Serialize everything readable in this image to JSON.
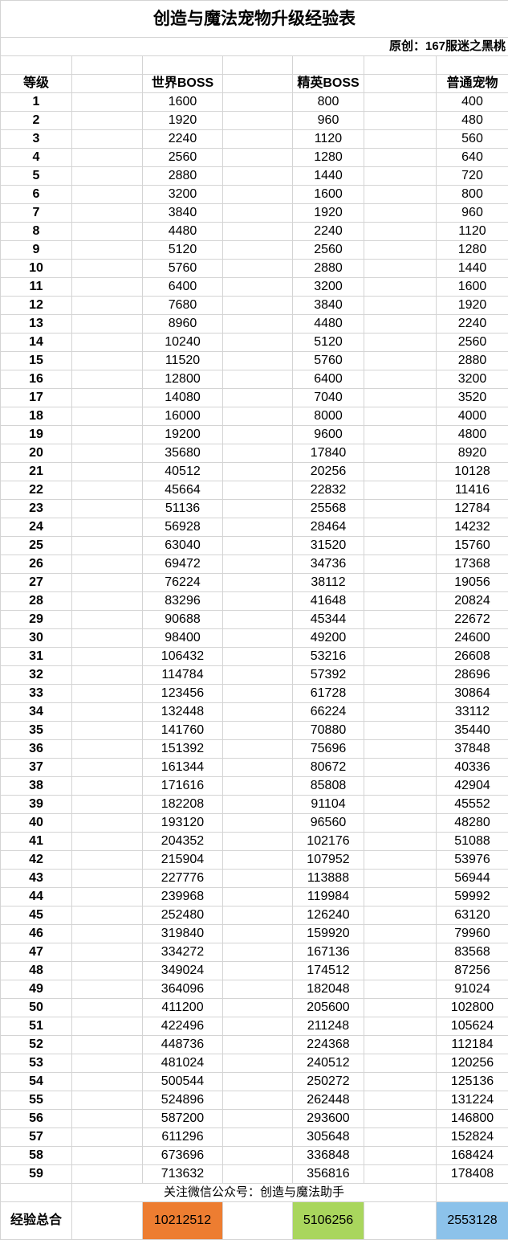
{
  "title": "创造与魔法宠物升级经验表",
  "author": "原创：167服迷之黑桃",
  "headers": {
    "level": "等级",
    "world_boss": "世界BOSS",
    "elite_boss": "精英BOSS",
    "normal_pet": "普通宠物"
  },
  "rows": [
    [
      "1",
      "1600",
      "800",
      "400"
    ],
    [
      "2",
      "1920",
      "960",
      "480"
    ],
    [
      "3",
      "2240",
      "1120",
      "560"
    ],
    [
      "4",
      "2560",
      "1280",
      "640"
    ],
    [
      "5",
      "2880",
      "1440",
      "720"
    ],
    [
      "6",
      "3200",
      "1600",
      "800"
    ],
    [
      "7",
      "3840",
      "1920",
      "960"
    ],
    [
      "8",
      "4480",
      "2240",
      "1120"
    ],
    [
      "9",
      "5120",
      "2560",
      "1280"
    ],
    [
      "10",
      "5760",
      "2880",
      "1440"
    ],
    [
      "11",
      "6400",
      "3200",
      "1600"
    ],
    [
      "12",
      "7680",
      "3840",
      "1920"
    ],
    [
      "13",
      "8960",
      "4480",
      "2240"
    ],
    [
      "14",
      "10240",
      "5120",
      "2560"
    ],
    [
      "15",
      "11520",
      "5760",
      "2880"
    ],
    [
      "16",
      "12800",
      "6400",
      "3200"
    ],
    [
      "17",
      "14080",
      "7040",
      "3520"
    ],
    [
      "18",
      "16000",
      "8000",
      "4000"
    ],
    [
      "19",
      "19200",
      "9600",
      "4800"
    ],
    [
      "20",
      "35680",
      "17840",
      "8920"
    ],
    [
      "21",
      "40512",
      "20256",
      "10128"
    ],
    [
      "22",
      "45664",
      "22832",
      "11416"
    ],
    [
      "23",
      "51136",
      "25568",
      "12784"
    ],
    [
      "24",
      "56928",
      "28464",
      "14232"
    ],
    [
      "25",
      "63040",
      "31520",
      "15760"
    ],
    [
      "26",
      "69472",
      "34736",
      "17368"
    ],
    [
      "27",
      "76224",
      "38112",
      "19056"
    ],
    [
      "28",
      "83296",
      "41648",
      "20824"
    ],
    [
      "29",
      "90688",
      "45344",
      "22672"
    ],
    [
      "30",
      "98400",
      "49200",
      "24600"
    ],
    [
      "31",
      "106432",
      "53216",
      "26608"
    ],
    [
      "32",
      "114784",
      "57392",
      "28696"
    ],
    [
      "33",
      "123456",
      "61728",
      "30864"
    ],
    [
      "34",
      "132448",
      "66224",
      "33112"
    ],
    [
      "35",
      "141760",
      "70880",
      "35440"
    ],
    [
      "36",
      "151392",
      "75696",
      "37848"
    ],
    [
      "37",
      "161344",
      "80672",
      "40336"
    ],
    [
      "38",
      "171616",
      "85808",
      "42904"
    ],
    [
      "39",
      "182208",
      "91104",
      "45552"
    ],
    [
      "40",
      "193120",
      "96560",
      "48280"
    ],
    [
      "41",
      "204352",
      "102176",
      "51088"
    ],
    [
      "42",
      "215904",
      "107952",
      "53976"
    ],
    [
      "43",
      "227776",
      "113888",
      "56944"
    ],
    [
      "44",
      "239968",
      "119984",
      "59992"
    ],
    [
      "45",
      "252480",
      "126240",
      "63120"
    ],
    [
      "46",
      "319840",
      "159920",
      "79960"
    ],
    [
      "47",
      "334272",
      "167136",
      "83568"
    ],
    [
      "48",
      "349024",
      "174512",
      "87256"
    ],
    [
      "49",
      "364096",
      "182048",
      "91024"
    ],
    [
      "50",
      "411200",
      "205600",
      "102800"
    ],
    [
      "51",
      "422496",
      "211248",
      "105624"
    ],
    [
      "52",
      "448736",
      "224368",
      "112184"
    ],
    [
      "53",
      "481024",
      "240512",
      "120256"
    ],
    [
      "54",
      "500544",
      "250272",
      "125136"
    ],
    [
      "55",
      "524896",
      "262448",
      "131224"
    ],
    [
      "56",
      "587200",
      "293600",
      "146800"
    ],
    [
      "57",
      "611296",
      "305648",
      "152824"
    ],
    [
      "58",
      "673696",
      "336848",
      "168424"
    ],
    [
      "59",
      "713632",
      "356816",
      "178408"
    ]
  ],
  "note": "关注微信公众号：创造与魔法助手",
  "totals": {
    "label": "经验总合",
    "world_boss": "10212512",
    "elite_boss": "5106256",
    "normal_pet": "2553128"
  },
  "colors": {
    "world_total": "#ED7D31",
    "elite_total": "#A9D65D",
    "normal_total": "#8CC2EA",
    "grid": "#d4d4d4"
  }
}
